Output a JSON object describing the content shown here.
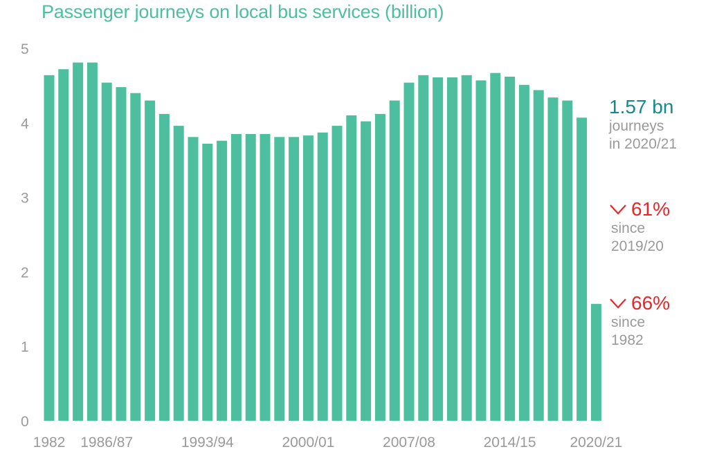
{
  "colors": {
    "bar": "#4dbf9e",
    "title": "#4dbf9e",
    "axis_text": "#9a9a9a",
    "highlight": "#14888a",
    "decrease": "#e8262a"
  },
  "chart_data": {
    "type": "bar",
    "title": "Passenger journeys on local bus services (billion)",
    "xlabel": "",
    "ylabel": "",
    "ylim": [
      0,
      5
    ],
    "yticks": [
      0,
      1,
      2,
      3,
      4,
      5
    ],
    "grid": false,
    "x_tick_labels": [
      "1982",
      "1986/87",
      "1993/94",
      "2000/01",
      "2007/08",
      "2014/15",
      "2020/21"
    ],
    "categories": [
      "1982",
      "1983",
      "1984",
      "1985/86",
      "1986/87",
      "1987/88",
      "1988/89",
      "1989/90",
      "1990/91",
      "1991/92",
      "1992/93",
      "1993/94",
      "1994/95",
      "1995/96",
      "1996/97",
      "1997/98",
      "1998/99",
      "1999/00",
      "2000/01",
      "2001/02",
      "2002/03",
      "2003/04",
      "2004/05",
      "2005/06",
      "2006/07",
      "2007/08",
      "2008/09",
      "2009/10",
      "2010/11",
      "2011/12",
      "2012/13",
      "2013/14",
      "2014/15",
      "2015/16",
      "2016/17",
      "2017/18",
      "2018/19",
      "2019/20",
      "2020/21"
    ],
    "values": [
      4.64,
      4.72,
      4.81,
      4.81,
      4.54,
      4.48,
      4.4,
      4.3,
      4.12,
      3.96,
      3.81,
      3.72,
      3.76,
      3.85,
      3.85,
      3.85,
      3.81,
      3.81,
      3.83,
      3.87,
      3.96,
      4.1,
      4.02,
      4.12,
      4.3,
      4.54,
      4.64,
      4.61,
      4.61,
      4.64,
      4.57,
      4.67,
      4.62,
      4.51,
      4.44,
      4.34,
      4.3,
      4.07,
      1.57
    ]
  },
  "annotations": {
    "total": {
      "value": "1.57 bn",
      "line1": "journeys",
      "line2": "in 2020/21"
    },
    "change_1": {
      "value": "61%",
      "line1": "since",
      "line2": "2019/20"
    },
    "change_2": {
      "value": "66%",
      "line1": "since",
      "line2": "1982"
    }
  },
  "icons": {
    "decrease": "chevron-down-icon"
  }
}
